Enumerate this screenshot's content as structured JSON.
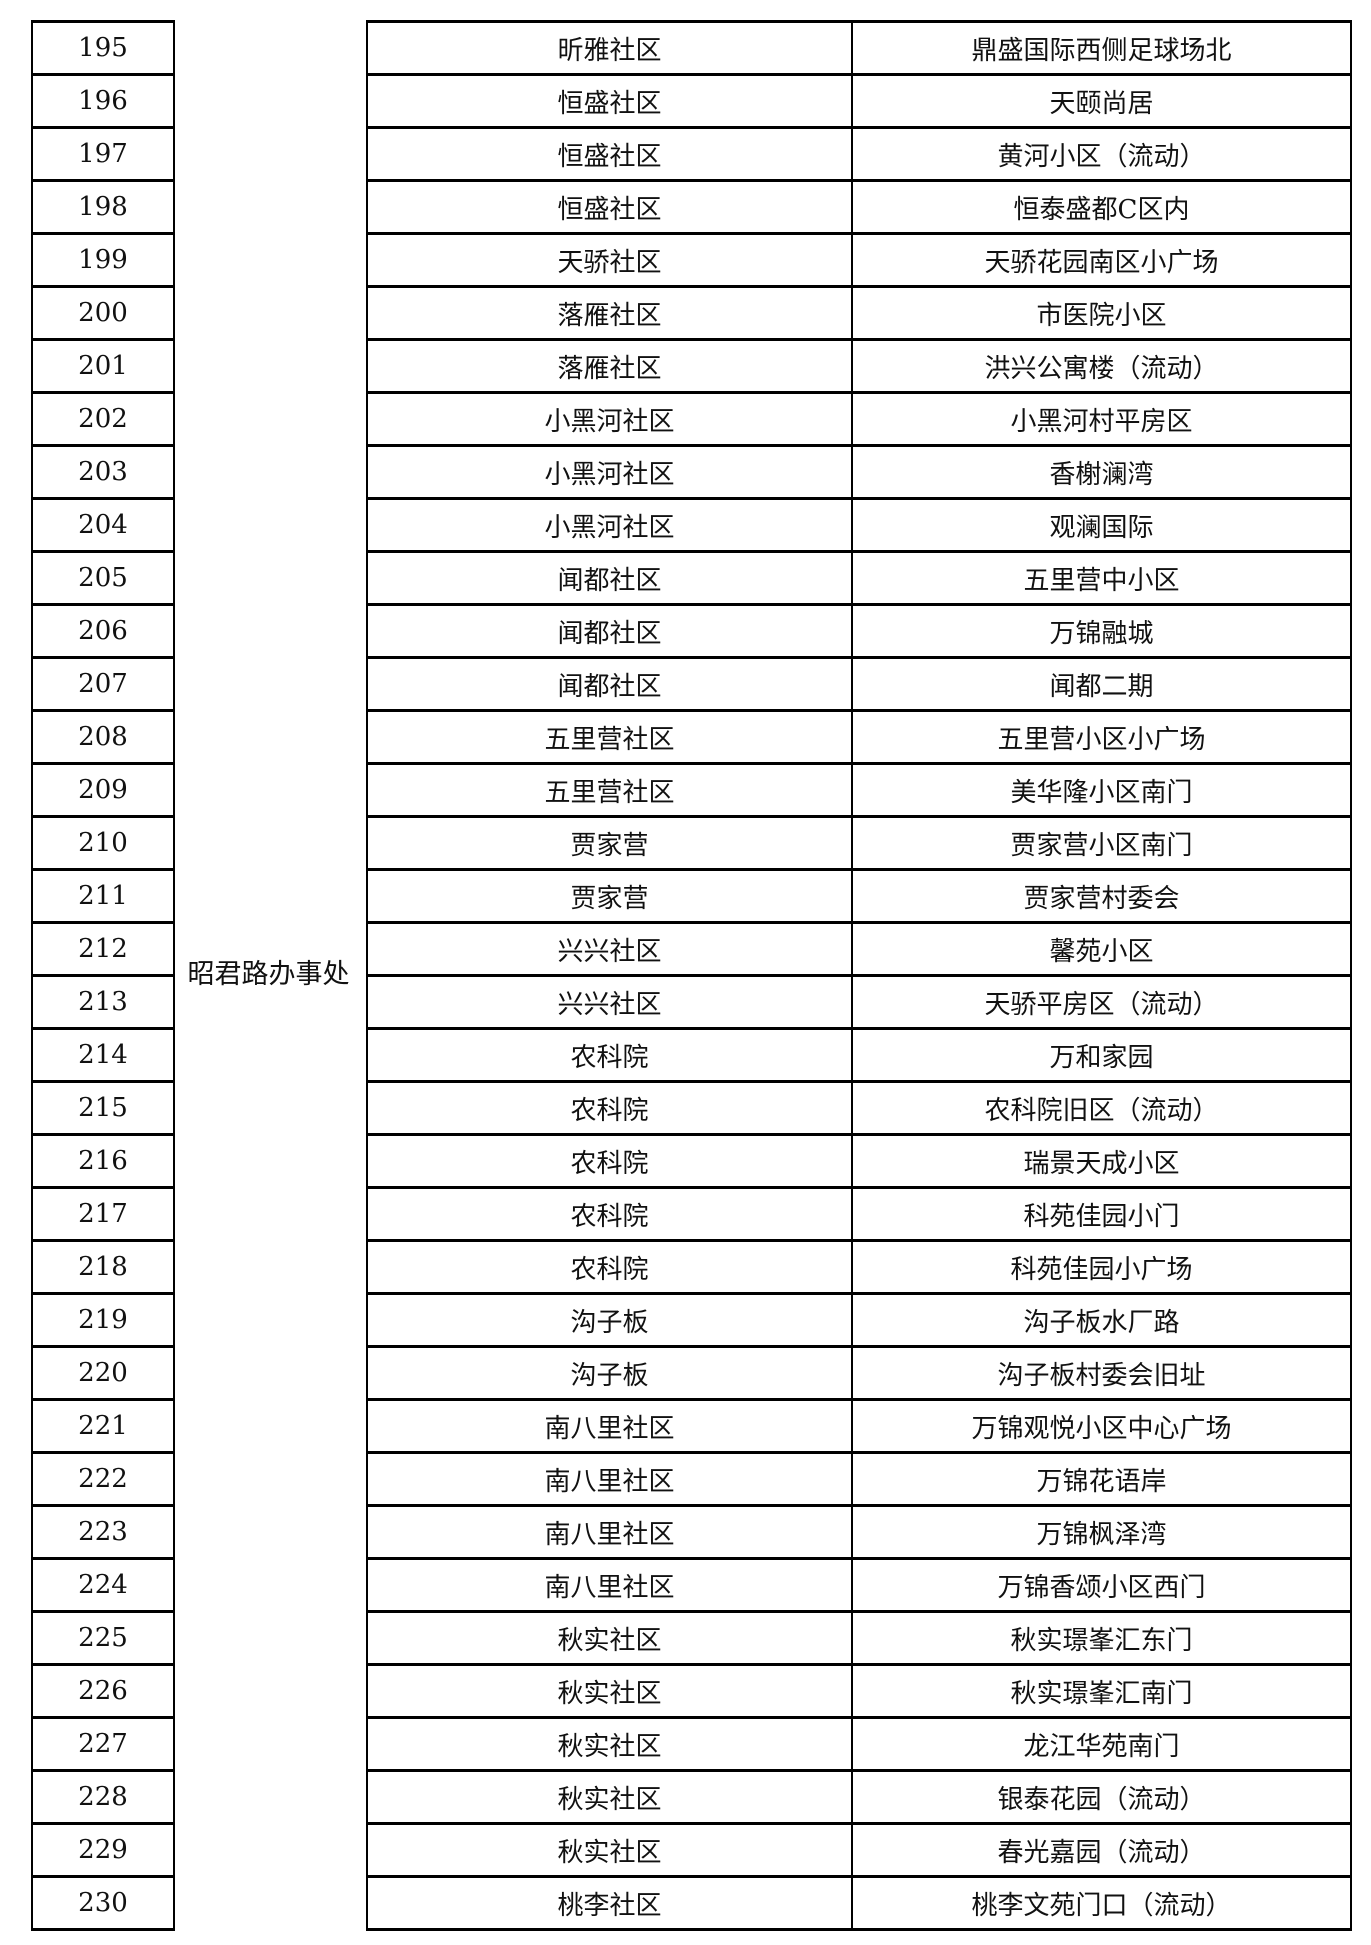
{
  "office": "昭君路办事处",
  "rows": [
    {
      "no": "195",
      "community": "昕雅社区",
      "location": "鼎盛国际西侧足球场北"
    },
    {
      "no": "196",
      "community": "恒盛社区",
      "location": "天颐尚居"
    },
    {
      "no": "197",
      "community": "恒盛社区",
      "location": "黄河小区（流动）"
    },
    {
      "no": "198",
      "community": "恒盛社区",
      "location": "恒泰盛都C区内"
    },
    {
      "no": "199",
      "community": "天骄社区",
      "location": "天骄花园南区小广场"
    },
    {
      "no": "200",
      "community": "落雁社区",
      "location": "市医院小区"
    },
    {
      "no": "201",
      "community": "落雁社区",
      "location": "洪兴公寓楼（流动）"
    },
    {
      "no": "202",
      "community": "小黑河社区",
      "location": "小黑河村平房区"
    },
    {
      "no": "203",
      "community": "小黑河社区",
      "location": "香榭澜湾"
    },
    {
      "no": "204",
      "community": "小黑河社区",
      "location": "观澜国际"
    },
    {
      "no": "205",
      "community": "闻都社区",
      "location": "五里营中小区"
    },
    {
      "no": "206",
      "community": "闻都社区",
      "location": "万锦融城"
    },
    {
      "no": "207",
      "community": "闻都社区",
      "location": "闻都二期"
    },
    {
      "no": "208",
      "community": "五里营社区",
      "location": "五里营小区小广场"
    },
    {
      "no": "209",
      "community": "五里营社区",
      "location": "美华隆小区南门"
    },
    {
      "no": "210",
      "community": "贾家营",
      "location": "贾家营小区南门"
    },
    {
      "no": "211",
      "community": "贾家营",
      "location": "贾家营村委会"
    },
    {
      "no": "212",
      "community": "兴兴社区",
      "location": "馨苑小区"
    },
    {
      "no": "213",
      "community": "兴兴社区",
      "location": "天骄平房区（流动）"
    },
    {
      "no": "214",
      "community": "农科院",
      "location": "万和家园"
    },
    {
      "no": "215",
      "community": "农科院",
      "location": "农科院旧区（流动）"
    },
    {
      "no": "216",
      "community": "农科院",
      "location": "瑞景天成小区"
    },
    {
      "no": "217",
      "community": "农科院",
      "location": "科苑佳园小门"
    },
    {
      "no": "218",
      "community": "农科院",
      "location": "科苑佳园小广场"
    },
    {
      "no": "219",
      "community": "沟子板",
      "location": "沟子板水厂路"
    },
    {
      "no": "220",
      "community": "沟子板",
      "location": "沟子板村委会旧址"
    },
    {
      "no": "221",
      "community": "南八里社区",
      "location": "万锦观悦小区中心广场"
    },
    {
      "no": "222",
      "community": "南八里社区",
      "location": "万锦花语岸"
    },
    {
      "no": "223",
      "community": "南八里社区",
      "location": "万锦枫泽湾"
    },
    {
      "no": "224",
      "community": "南八里社区",
      "location": "万锦香颂小区西门"
    },
    {
      "no": "225",
      "community": "秋实社区",
      "location": "秋实璟峯汇东门"
    },
    {
      "no": "226",
      "community": "秋实社区",
      "location": "秋实璟峯汇南门"
    },
    {
      "no": "227",
      "community": "秋实社区",
      "location": "龙江华苑南门"
    },
    {
      "no": "228",
      "community": "秋实社区",
      "location": "银泰花园（流动）"
    },
    {
      "no": "229",
      "community": "秋实社区",
      "location": "春光嘉园（流动）"
    },
    {
      "no": "230",
      "community": "桃李社区",
      "location": "桃李文苑门口（流动）"
    }
  ]
}
